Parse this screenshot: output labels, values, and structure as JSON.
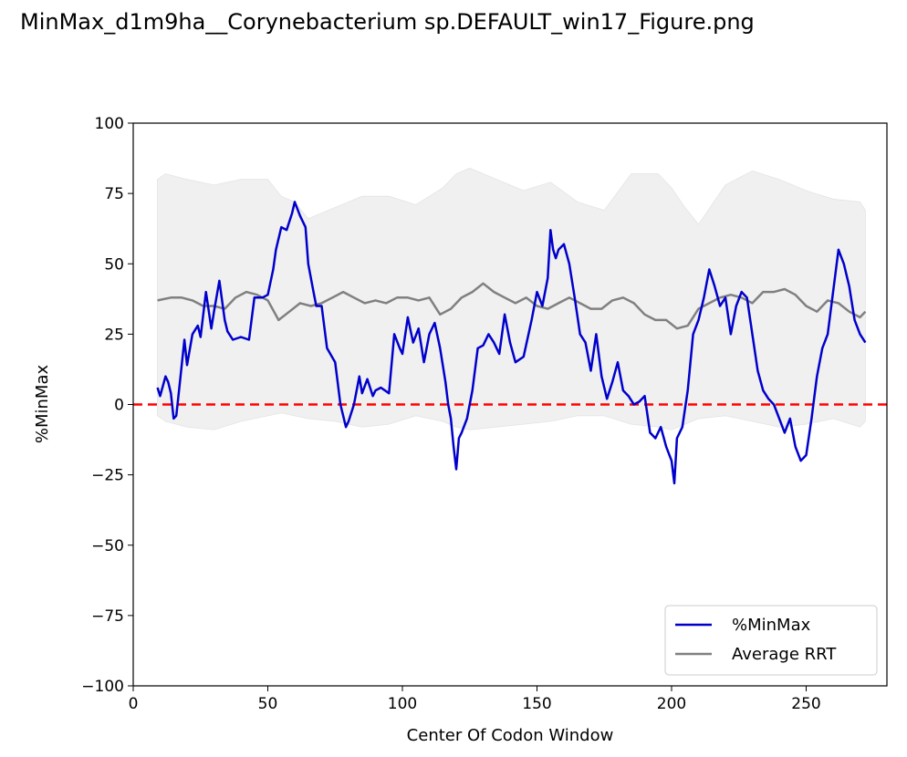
{
  "file_title": "MinMax_d1m9ha__Corynebacterium sp.DEFAULT_win17_Figure.png",
  "chart_data": {
    "type": "line",
    "title": "",
    "xlabel": "Center Of Codon Window",
    "ylabel": "%MinMax",
    "xlim": [
      0,
      280
    ],
    "ylim": [
      -100,
      100
    ],
    "xticks": [
      0,
      50,
      100,
      150,
      200,
      250
    ],
    "yticks": [
      -100,
      -75,
      -50,
      -25,
      0,
      25,
      50,
      75,
      100
    ],
    "xtick_labels": [
      "0",
      "50",
      "100",
      "150",
      "200",
      "250"
    ],
    "ytick_labels": [
      "−100",
      "−75",
      "−50",
      "−25",
      "0",
      "25",
      "50",
      "75",
      "100"
    ],
    "grid": false,
    "legend_position": "lower-right",
    "reference_line": {
      "y": 0,
      "color": "#ff0000",
      "style": "dashed"
    },
    "band": {
      "color": "#f0f0f0",
      "x": [
        9,
        12,
        20,
        30,
        40,
        50,
        55,
        60,
        65,
        75,
        85,
        95,
        105,
        115,
        120,
        125,
        135,
        145,
        155,
        165,
        175,
        185,
        195,
        200,
        205,
        210,
        220,
        230,
        240,
        250,
        260,
        270,
        272
      ],
      "upper": [
        80,
        82,
        80,
        78,
        80,
        80,
        74,
        72,
        66,
        70,
        74,
        74,
        71,
        77,
        82,
        84,
        80,
        76,
        79,
        72,
        69,
        82,
        82,
        77,
        70,
        64,
        78,
        83,
        80,
        76,
        73,
        72,
        69
      ],
      "lower": [
        -4,
        -6,
        -8,
        -9,
        -6,
        -4,
        -3,
        -4,
        -5,
        -6,
        -8,
        -7,
        -4,
        -6,
        -8,
        -9,
        -8,
        -7,
        -6,
        -4,
        -4,
        -7,
        -8,
        -9,
        -7,
        -5,
        -4,
        -6,
        -8,
        -7,
        -5,
        -8,
        -6
      ]
    },
    "series": [
      {
        "name": "%MinMax",
        "color": "#0000cc",
        "x": [
          9,
          10,
          12,
          13,
          14,
          15,
          16,
          17,
          19,
          20,
          22,
          24,
          25,
          27,
          29,
          30,
          32,
          34,
          35,
          37,
          40,
          43,
          45,
          48,
          50,
          52,
          53,
          55,
          57,
          59,
          60,
          62,
          64,
          65,
          67,
          68,
          70,
          72,
          75,
          77,
          79,
          80,
          82,
          84,
          85,
          87,
          89,
          90,
          92,
          95,
          97,
          99,
          100,
          102,
          104,
          106,
          108,
          110,
          112,
          114,
          116,
          117,
          118,
          119,
          120,
          121,
          122,
          124,
          126,
          128,
          130,
          132,
          134,
          136,
          138,
          140,
          142,
          145,
          148,
          150,
          152,
          154,
          155,
          156,
          157,
          158,
          160,
          162,
          164,
          166,
          168,
          170,
          172,
          174,
          176,
          178,
          180,
          182,
          184,
          186,
          188,
          190,
          192,
          194,
          196,
          198,
          200,
          201,
          202,
          204,
          206,
          208,
          210,
          212,
          214,
          216,
          218,
          220,
          222,
          224,
          226,
          228,
          230,
          232,
          234,
          236,
          238,
          240,
          242,
          244,
          246,
          248,
          250,
          252,
          254,
          256,
          258,
          260,
          262,
          264,
          266,
          268,
          270,
          272
        ],
        "y": [
          6,
          3,
          10,
          8,
          4,
          -5,
          -4,
          5,
          23,
          14,
          25,
          28,
          24,
          40,
          27,
          33,
          44,
          30,
          26,
          23,
          24,
          23,
          38,
          38,
          39,
          48,
          55,
          63,
          62,
          68,
          72,
          67,
          63,
          50,
          40,
          35,
          35,
          20,
          15,
          0,
          -8,
          -6,
          0,
          10,
          4,
          9,
          3,
          5,
          6,
          4,
          25,
          20,
          18,
          31,
          22,
          27,
          15,
          25,
          29,
          20,
          8,
          0,
          -5,
          -15,
          -23,
          -12,
          -10,
          -5,
          5,
          20,
          21,
          25,
          22,
          18,
          32,
          22,
          15,
          17,
          30,
          40,
          35,
          45,
          62,
          55,
          52,
          55,
          57,
          50,
          38,
          25,
          22,
          12,
          25,
          10,
          2,
          8,
          15,
          5,
          3,
          0,
          1,
          3,
          -10,
          -12,
          -8,
          -15,
          -20,
          -28,
          -12,
          -8,
          5,
          25,
          30,
          38,
          48,
          42,
          35,
          38,
          25,
          35,
          40,
          38,
          25,
          12,
          5,
          2,
          0,
          -5,
          -10,
          -5,
          -15,
          -20,
          -18,
          -5,
          10,
          20,
          25,
          40,
          55,
          50,
          42,
          30,
          25,
          22
        ]
      },
      {
        "name": "Average RRT",
        "color": "#808080",
        "x": [
          9,
          14,
          18,
          22,
          26,
          30,
          34,
          38,
          42,
          46,
          50,
          54,
          58,
          62,
          66,
          70,
          74,
          78,
          82,
          86,
          90,
          94,
          98,
          102,
          106,
          110,
          114,
          118,
          122,
          126,
          130,
          134,
          138,
          142,
          146,
          150,
          154,
          158,
          162,
          166,
          170,
          174,
          178,
          182,
          186,
          190,
          194,
          198,
          202,
          206,
          210,
          214,
          218,
          222,
          226,
          230,
          234,
          238,
          242,
          246,
          250,
          254,
          258,
          262,
          266,
          270,
          272
        ],
        "y": [
          37,
          38,
          38,
          37,
          35,
          35,
          34,
          38,
          40,
          39,
          37,
          30,
          33,
          36,
          35,
          36,
          38,
          40,
          38,
          36,
          37,
          36,
          38,
          38,
          37,
          38,
          32,
          34,
          38,
          40,
          43,
          40,
          38,
          36,
          38,
          35,
          34,
          36,
          38,
          36,
          34,
          34,
          37,
          38,
          36,
          32,
          30,
          30,
          27,
          28,
          34,
          36,
          38,
          39,
          38,
          36,
          40,
          40,
          41,
          39,
          35,
          33,
          37,
          36,
          33,
          31,
          33
        ]
      }
    ]
  }
}
